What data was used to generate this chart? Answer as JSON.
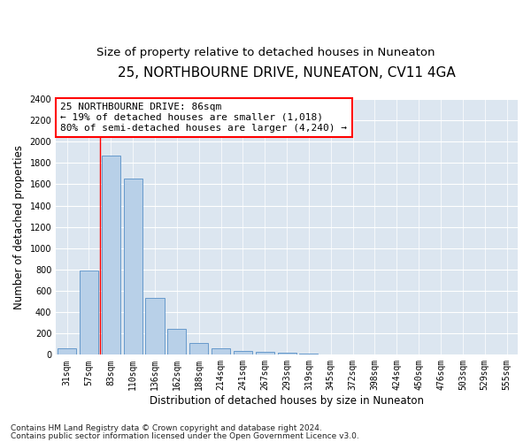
{
  "title": "25, NORTHBOURNE DRIVE, NUNEATON, CV11 4GA",
  "subtitle": "Size of property relative to detached houses in Nuneaton",
  "xlabel": "Distribution of detached houses by size in Nuneaton",
  "ylabel": "Number of detached properties",
  "categories": [
    "31sqm",
    "57sqm",
    "83sqm",
    "110sqm",
    "136sqm",
    "162sqm",
    "188sqm",
    "214sqm",
    "241sqm",
    "267sqm",
    "293sqm",
    "319sqm",
    "345sqm",
    "372sqm",
    "398sqm",
    "424sqm",
    "450sqm",
    "476sqm",
    "503sqm",
    "529sqm",
    "555sqm"
  ],
  "values": [
    60,
    790,
    1870,
    1650,
    530,
    240,
    110,
    60,
    40,
    25,
    20,
    15,
    5,
    3,
    2,
    1,
    1,
    1,
    1,
    1,
    1
  ],
  "bar_color": "#b8d0e8",
  "bar_edgecolor": "#6699cc",
  "background_color": "#dce6f0",
  "annotation_text": "25 NORTHBOURNE DRIVE: 86sqm\n← 19% of detached houses are smaller (1,018)\n80% of semi-detached houses are larger (4,240) →",
  "annotation_box_edgecolor": "red",
  "redline_bin_index": 1.5,
  "ylim": [
    0,
    2400
  ],
  "yticks": [
    0,
    200,
    400,
    600,
    800,
    1000,
    1200,
    1400,
    1600,
    1800,
    2000,
    2200,
    2400
  ],
  "footnote1": "Contains HM Land Registry data © Crown copyright and database right 2024.",
  "footnote2": "Contains public sector information licensed under the Open Government Licence v3.0.",
  "title_fontsize": 11,
  "subtitle_fontsize": 9.5,
  "xlabel_fontsize": 8.5,
  "ylabel_fontsize": 8.5,
  "tick_fontsize": 7,
  "annotation_fontsize": 8,
  "footnote_fontsize": 6.5
}
